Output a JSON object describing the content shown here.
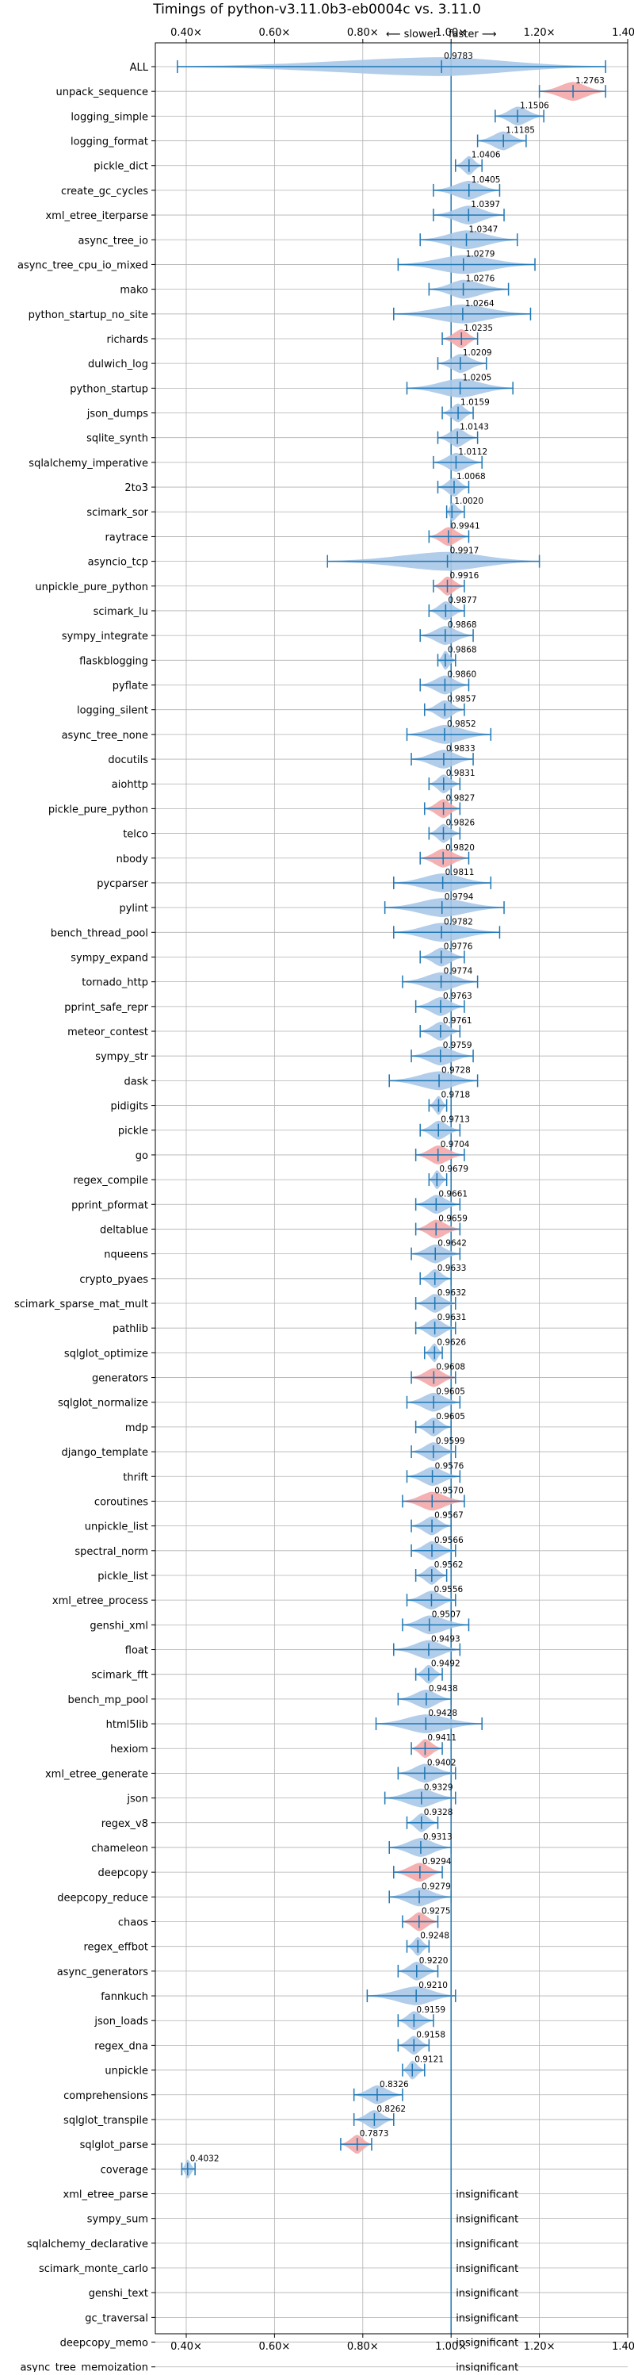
{
  "chart_data": {
    "type": "violin",
    "title": "Timings of python-v3.11.0b3-eb0004c vs. 3.11.0",
    "direction_labels": {
      "slower": "⟵ slower",
      "faster": "faster ⟶"
    },
    "xlim": [
      0.33,
      1.4
    ],
    "xticks": [
      0.4,
      0.6,
      0.8,
      1.0,
      1.2,
      1.4
    ],
    "xtick_labels": [
      "0.40×",
      "0.60×",
      "0.80×",
      "1.00×",
      "1.20×",
      "1.40×"
    ],
    "reference_line": 1.0,
    "grid": true,
    "colors": {
      "faster": "#a8c8e8",
      "slower": "#f4a8a8",
      "line": "#1f77b4"
    },
    "insignificant_label": "insignificant",
    "benchmarks": [
      {
        "name": "ALL",
        "value": 0.9783,
        "min": 0.38,
        "max": 1.35,
        "status": "neutral"
      },
      {
        "name": "unpack_sequence",
        "value": 1.2763,
        "min": 1.2,
        "max": 1.35,
        "status": "slower"
      },
      {
        "name": "logging_simple",
        "value": 1.1506,
        "min": 1.1,
        "max": 1.21,
        "status": "faster"
      },
      {
        "name": "logging_format",
        "value": 1.1185,
        "min": 1.06,
        "max": 1.17,
        "status": "faster"
      },
      {
        "name": "pickle_dict",
        "value": 1.0406,
        "min": 1.01,
        "max": 1.07,
        "status": "faster"
      },
      {
        "name": "create_gc_cycles",
        "value": 1.0405,
        "min": 0.96,
        "max": 1.11,
        "status": "faster"
      },
      {
        "name": "xml_etree_iterparse",
        "value": 1.0397,
        "min": 0.96,
        "max": 1.12,
        "status": "faster"
      },
      {
        "name": "async_tree_io",
        "value": 1.0347,
        "min": 0.93,
        "max": 1.15,
        "status": "faster"
      },
      {
        "name": "async_tree_cpu_io_mixed",
        "value": 1.0279,
        "min": 0.88,
        "max": 1.19,
        "status": "faster"
      },
      {
        "name": "mako",
        "value": 1.0276,
        "min": 0.95,
        "max": 1.13,
        "status": "faster"
      },
      {
        "name": "python_startup_no_site",
        "value": 1.0264,
        "min": 0.87,
        "max": 1.18,
        "status": "faster"
      },
      {
        "name": "richards",
        "value": 1.0235,
        "min": 0.98,
        "max": 1.06,
        "status": "slower"
      },
      {
        "name": "dulwich_log",
        "value": 1.0209,
        "min": 0.97,
        "max": 1.08,
        "status": "faster"
      },
      {
        "name": "python_startup",
        "value": 1.0205,
        "min": 0.9,
        "max": 1.14,
        "status": "faster"
      },
      {
        "name": "json_dumps",
        "value": 1.0159,
        "min": 0.98,
        "max": 1.05,
        "status": "faster"
      },
      {
        "name": "sqlite_synth",
        "value": 1.0143,
        "min": 0.97,
        "max": 1.06,
        "status": "faster"
      },
      {
        "name": "sqlalchemy_imperative",
        "value": 1.0112,
        "min": 0.96,
        "max": 1.07,
        "status": "faster"
      },
      {
        "name": "2to3",
        "value": 1.0068,
        "min": 0.97,
        "max": 1.04,
        "status": "faster"
      },
      {
        "name": "scimark_sor",
        "value": 1.002,
        "min": 0.99,
        "max": 1.03,
        "status": "faster"
      },
      {
        "name": "raytrace",
        "value": 0.9941,
        "min": 0.95,
        "max": 1.04,
        "status": "slower"
      },
      {
        "name": "asyncio_tcp",
        "value": 0.9917,
        "min": 0.72,
        "max": 1.2,
        "status": "faster"
      },
      {
        "name": "unpickle_pure_python",
        "value": 0.9916,
        "min": 0.96,
        "max": 1.03,
        "status": "slower"
      },
      {
        "name": "scimark_lu",
        "value": 0.9877,
        "min": 0.95,
        "max": 1.03,
        "status": "faster"
      },
      {
        "name": "sympy_integrate",
        "value": 0.9868,
        "min": 0.93,
        "max": 1.05,
        "status": "faster"
      },
      {
        "name": "flaskblogging",
        "value": 0.9868,
        "min": 0.97,
        "max": 1.01,
        "status": "faster"
      },
      {
        "name": "pyflate",
        "value": 0.986,
        "min": 0.93,
        "max": 1.04,
        "status": "faster"
      },
      {
        "name": "logging_silent",
        "value": 0.9857,
        "min": 0.94,
        "max": 1.03,
        "status": "faster"
      },
      {
        "name": "async_tree_none",
        "value": 0.9852,
        "min": 0.9,
        "max": 1.09,
        "status": "faster"
      },
      {
        "name": "docutils",
        "value": 0.9833,
        "min": 0.91,
        "max": 1.05,
        "status": "faster"
      },
      {
        "name": "aiohttp",
        "value": 0.9831,
        "min": 0.95,
        "max": 1.02,
        "status": "faster"
      },
      {
        "name": "pickle_pure_python",
        "value": 0.9827,
        "min": 0.94,
        "max": 1.02,
        "status": "slower"
      },
      {
        "name": "telco",
        "value": 0.9826,
        "min": 0.95,
        "max": 1.02,
        "status": "faster"
      },
      {
        "name": "nbody",
        "value": 0.982,
        "min": 0.93,
        "max": 1.04,
        "status": "slower"
      },
      {
        "name": "pycparser",
        "value": 0.9811,
        "min": 0.87,
        "max": 1.09,
        "status": "faster"
      },
      {
        "name": "pylint",
        "value": 0.9794,
        "min": 0.85,
        "max": 1.12,
        "status": "faster"
      },
      {
        "name": "bench_thread_pool",
        "value": 0.9782,
        "min": 0.87,
        "max": 1.11,
        "status": "faster"
      },
      {
        "name": "sympy_expand",
        "value": 0.9776,
        "min": 0.93,
        "max": 1.03,
        "status": "faster"
      },
      {
        "name": "tornado_http",
        "value": 0.9774,
        "min": 0.89,
        "max": 1.06,
        "status": "faster"
      },
      {
        "name": "pprint_safe_repr",
        "value": 0.9763,
        "min": 0.92,
        "max": 1.03,
        "status": "faster"
      },
      {
        "name": "meteor_contest",
        "value": 0.9761,
        "min": 0.93,
        "max": 1.02,
        "status": "faster"
      },
      {
        "name": "sympy_str",
        "value": 0.9759,
        "min": 0.91,
        "max": 1.05,
        "status": "faster"
      },
      {
        "name": "dask",
        "value": 0.9728,
        "min": 0.86,
        "max": 1.06,
        "status": "faster"
      },
      {
        "name": "pidigits",
        "value": 0.9718,
        "min": 0.95,
        "max": 0.99,
        "status": "faster"
      },
      {
        "name": "pickle",
        "value": 0.9713,
        "min": 0.93,
        "max": 1.02,
        "status": "faster"
      },
      {
        "name": "go",
        "value": 0.9704,
        "min": 0.92,
        "max": 1.03,
        "status": "slower"
      },
      {
        "name": "regex_compile",
        "value": 0.9679,
        "min": 0.95,
        "max": 0.99,
        "status": "faster"
      },
      {
        "name": "pprint_pformat",
        "value": 0.9661,
        "min": 0.92,
        "max": 1.02,
        "status": "faster"
      },
      {
        "name": "deltablue",
        "value": 0.9659,
        "min": 0.92,
        "max": 1.02,
        "status": "slower"
      },
      {
        "name": "nqueens",
        "value": 0.9642,
        "min": 0.91,
        "max": 1.02,
        "status": "faster"
      },
      {
        "name": "crypto_pyaes",
        "value": 0.9633,
        "min": 0.93,
        "max": 1.0,
        "status": "faster"
      },
      {
        "name": "scimark_sparse_mat_mult",
        "value": 0.9632,
        "min": 0.92,
        "max": 1.01,
        "status": "faster"
      },
      {
        "name": "pathlib",
        "value": 0.9631,
        "min": 0.92,
        "max": 1.01,
        "status": "faster"
      },
      {
        "name": "sqlglot_optimize",
        "value": 0.9626,
        "min": 0.94,
        "max": 0.98,
        "status": "faster"
      },
      {
        "name": "generators",
        "value": 0.9608,
        "min": 0.91,
        "max": 1.01,
        "status": "slower"
      },
      {
        "name": "sqlglot_normalize",
        "value": 0.9605,
        "min": 0.9,
        "max": 1.02,
        "status": "faster"
      },
      {
        "name": "mdp",
        "value": 0.9605,
        "min": 0.92,
        "max": 1.0,
        "status": "faster"
      },
      {
        "name": "django_template",
        "value": 0.9599,
        "min": 0.91,
        "max": 1.01,
        "status": "faster"
      },
      {
        "name": "thrift",
        "value": 0.9576,
        "min": 0.9,
        "max": 1.02,
        "status": "faster"
      },
      {
        "name": "coroutines",
        "value": 0.957,
        "min": 0.89,
        "max": 1.03,
        "status": "slower"
      },
      {
        "name": "unpickle_list",
        "value": 0.9567,
        "min": 0.91,
        "max": 1.0,
        "status": "faster"
      },
      {
        "name": "spectral_norm",
        "value": 0.9566,
        "min": 0.91,
        "max": 1.01,
        "status": "faster"
      },
      {
        "name": "pickle_list",
        "value": 0.9562,
        "min": 0.92,
        "max": 0.99,
        "status": "faster"
      },
      {
        "name": "xml_etree_process",
        "value": 0.9556,
        "min": 0.9,
        "max": 1.01,
        "status": "faster"
      },
      {
        "name": "genshi_xml",
        "value": 0.9507,
        "min": 0.89,
        "max": 1.04,
        "status": "faster"
      },
      {
        "name": "float",
        "value": 0.9493,
        "min": 0.87,
        "max": 1.02,
        "status": "faster"
      },
      {
        "name": "scimark_fft",
        "value": 0.9492,
        "min": 0.92,
        "max": 0.98,
        "status": "faster"
      },
      {
        "name": "bench_mp_pool",
        "value": 0.9438,
        "min": 0.88,
        "max": 1.0,
        "status": "faster"
      },
      {
        "name": "html5lib",
        "value": 0.9428,
        "min": 0.83,
        "max": 1.07,
        "status": "faster"
      },
      {
        "name": "hexiom",
        "value": 0.9411,
        "min": 0.91,
        "max": 0.98,
        "status": "slower"
      },
      {
        "name": "xml_etree_generate",
        "value": 0.9402,
        "min": 0.88,
        "max": 1.01,
        "status": "faster"
      },
      {
        "name": "json",
        "value": 0.9329,
        "min": 0.85,
        "max": 1.01,
        "status": "faster"
      },
      {
        "name": "regex_v8",
        "value": 0.9328,
        "min": 0.9,
        "max": 0.97,
        "status": "faster"
      },
      {
        "name": "chameleon",
        "value": 0.9313,
        "min": 0.86,
        "max": 1.0,
        "status": "faster"
      },
      {
        "name": "deepcopy",
        "value": 0.9294,
        "min": 0.87,
        "max": 0.98,
        "status": "slower"
      },
      {
        "name": "deepcopy_reduce",
        "value": 0.9279,
        "min": 0.86,
        "max": 1.0,
        "status": "faster"
      },
      {
        "name": "chaos",
        "value": 0.9275,
        "min": 0.89,
        "max": 0.97,
        "status": "slower"
      },
      {
        "name": "regex_effbot",
        "value": 0.9248,
        "min": 0.9,
        "max": 0.95,
        "status": "faster"
      },
      {
        "name": "async_generators",
        "value": 0.922,
        "min": 0.88,
        "max": 0.97,
        "status": "faster"
      },
      {
        "name": "fannkuch",
        "value": 0.921,
        "min": 0.81,
        "max": 1.01,
        "status": "faster"
      },
      {
        "name": "json_loads",
        "value": 0.9159,
        "min": 0.88,
        "max": 0.96,
        "status": "faster"
      },
      {
        "name": "regex_dna",
        "value": 0.9158,
        "min": 0.88,
        "max": 0.95,
        "status": "faster"
      },
      {
        "name": "unpickle",
        "value": 0.9121,
        "min": 0.89,
        "max": 0.94,
        "status": "faster"
      },
      {
        "name": "comprehensions",
        "value": 0.8326,
        "min": 0.78,
        "max": 0.89,
        "status": "faster"
      },
      {
        "name": "sqlglot_transpile",
        "value": 0.8262,
        "min": 0.78,
        "max": 0.87,
        "status": "faster"
      },
      {
        "name": "sqlglot_parse",
        "value": 0.7873,
        "min": 0.75,
        "max": 0.82,
        "status": "slower"
      },
      {
        "name": "coverage",
        "value": 0.4032,
        "min": 0.39,
        "max": 0.42,
        "status": "faster"
      },
      {
        "name": "xml_etree_parse",
        "value": null,
        "status": "insignificant"
      },
      {
        "name": "sympy_sum",
        "value": null,
        "status": "insignificant"
      },
      {
        "name": "sqlalchemy_declarative",
        "value": null,
        "status": "insignificant"
      },
      {
        "name": "scimark_monte_carlo",
        "value": null,
        "status": "insignificant"
      },
      {
        "name": "genshi_text",
        "value": null,
        "status": "insignificant"
      },
      {
        "name": "gc_traversal",
        "value": null,
        "status": "insignificant"
      },
      {
        "name": "deepcopy_memo",
        "value": null,
        "status": "insignificant"
      },
      {
        "name": "async_tree_memoization",
        "value": null,
        "status": "insignificant"
      }
    ]
  }
}
